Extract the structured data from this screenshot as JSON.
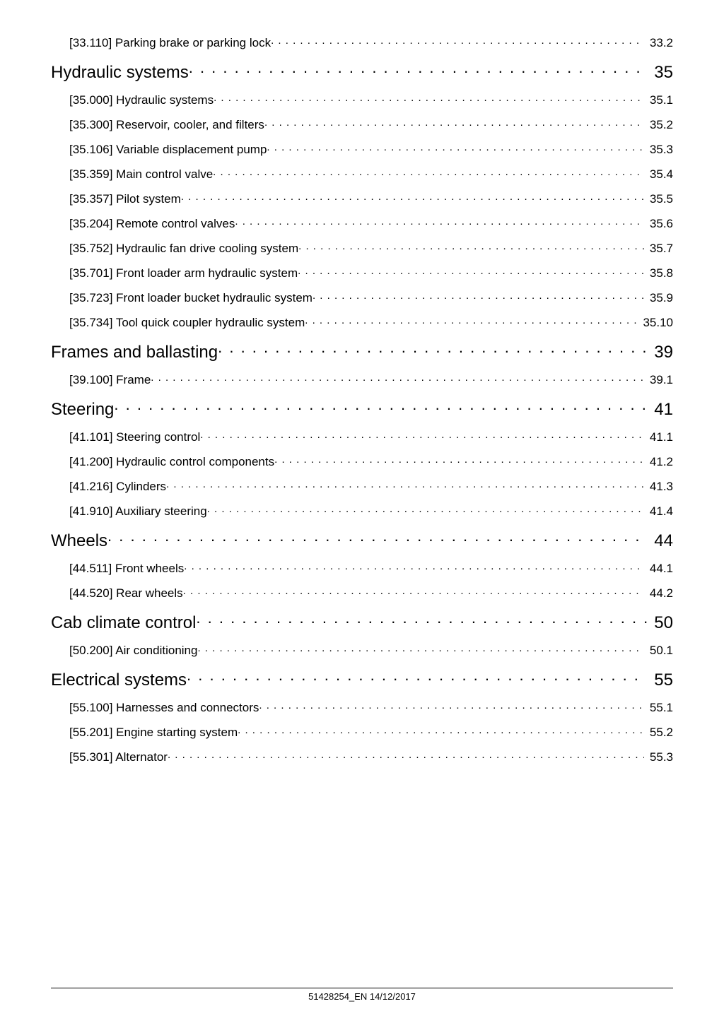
{
  "toc": [
    {
      "level": "sub",
      "first": true,
      "label": "[33.110] Parking brake or parking lock",
      "page": "33.2"
    },
    {
      "level": "section",
      "label": "Hydraulic systems",
      "page": "35"
    },
    {
      "level": "sub",
      "label": "[35.000] Hydraulic systems",
      "page": "35.1"
    },
    {
      "level": "sub",
      "label": "[35.300] Reservoir, cooler, and filters",
      "page": "35.2"
    },
    {
      "level": "sub",
      "label": "[35.106] Variable displacement pump",
      "page": "35.3"
    },
    {
      "level": "sub",
      "label": "[35.359] Main control valve",
      "page": "35.4"
    },
    {
      "level": "sub",
      "label": "[35.357] Pilot system",
      "page": "35.5"
    },
    {
      "level": "sub",
      "label": "[35.204] Remote control valves",
      "page": "35.6"
    },
    {
      "level": "sub",
      "label": "[35.752] Hydraulic fan drive cooling system",
      "page": "35.7"
    },
    {
      "level": "sub",
      "label": "[35.701] Front loader arm hydraulic system",
      "page": "35.8"
    },
    {
      "level": "sub",
      "label": "[35.723] Front loader bucket hydraulic system",
      "page": "35.9"
    },
    {
      "level": "sub",
      "label": "[35.734] Tool quick coupler hydraulic system",
      "page": "35.10"
    },
    {
      "level": "section",
      "label": "Frames and ballasting",
      "page": "39"
    },
    {
      "level": "sub",
      "label": "[39.100] Frame",
      "page": "39.1"
    },
    {
      "level": "section",
      "label": "Steering",
      "page": "41"
    },
    {
      "level": "sub",
      "label": "[41.101] Steering control",
      "page": "41.1"
    },
    {
      "level": "sub",
      "label": "[41.200] Hydraulic control components",
      "page": "41.2"
    },
    {
      "level": "sub",
      "label": "[41.216] Cylinders",
      "page": "41.3"
    },
    {
      "level": "sub",
      "label": "[41.910] Auxiliary steering",
      "page": "41.4"
    },
    {
      "level": "section",
      "label": "Wheels",
      "page": "44"
    },
    {
      "level": "sub",
      "label": "[44.511] Front wheels",
      "page": "44.1"
    },
    {
      "level": "sub",
      "label": "[44.520] Rear wheels",
      "page": "44.2"
    },
    {
      "level": "section",
      "label": "Cab climate control",
      "page": "50"
    },
    {
      "level": "sub",
      "label": "[50.200] Air conditioning",
      "page": "50.1"
    },
    {
      "level": "section",
      "label": "Electrical systems",
      "page": "55"
    },
    {
      "level": "sub",
      "label": "[55.100] Harnesses and connectors",
      "page": "55.1"
    },
    {
      "level": "sub",
      "label": "[55.201] Engine starting system",
      "page": "55.2"
    },
    {
      "level": "sub",
      "label": "[55.301] Alternator",
      "page": "55.3"
    }
  ],
  "footer": "51428254_EN 14/12/2017"
}
